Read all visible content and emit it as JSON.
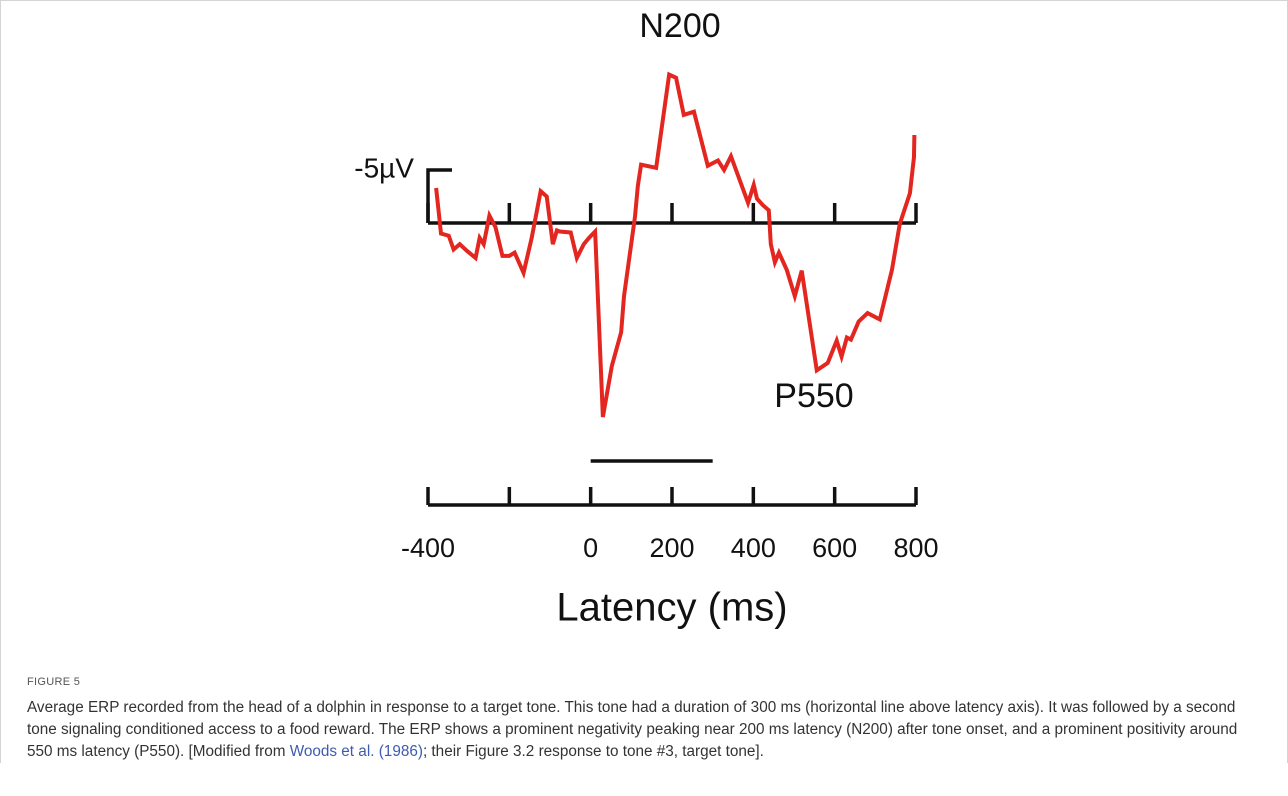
{
  "chart_data": {
    "type": "line",
    "x": [
      -380,
      -368,
      -349,
      -337,
      -322,
      -305,
      -283,
      -273,
      -263,
      -249,
      -234,
      -217,
      -200,
      -187,
      -165,
      -145,
      -123,
      -108,
      -93,
      -83,
      -76,
      -49,
      -34,
      -17,
      -4,
      11,
      30,
      52,
      75,
      82,
      109,
      116,
      124,
      161,
      193,
      210,
      229,
      254,
      288,
      313,
      328,
      345,
      387,
      401,
      409,
      423,
      438,
      443,
      453,
      463,
      482,
      502,
      519,
      556,
      583,
      605,
      617,
      630,
      640,
      659,
      681,
      711,
      741,
      760,
      785,
      795,
      796
    ],
    "values": [
      -3.3,
      1.0,
      1.2,
      2.5,
      2.0,
      2.6,
      3.3,
      1.4,
      2.0,
      -0.7,
      0.4,
      3.1,
      3.1,
      2.8,
      4.7,
      1.4,
      -3.0,
      -2.5,
      2.0,
      0.7,
      0.8,
      0.9,
      3.3,
      2.0,
      1.4,
      0.8,
      18.3,
      13.5,
      10.3,
      6.9,
      -0.6,
      -3.5,
      -5.5,
      -5.2,
      -14.0,
      -13.7,
      -10.2,
      -10.5,
      -5.4,
      -5.9,
      -5.0,
      -6.3,
      -1.9,
      -3.6,
      -2.3,
      -1.7,
      -1.2,
      2.0,
      3.7,
      2.8,
      4.4,
      6.9,
      4.5,
      13.9,
      13.2,
      11.1,
      12.6,
      10.8,
      11.0,
      9.3,
      8.5,
      9.1,
      4.4,
      0.1,
      -2.8,
      -6.2,
      -8.3
    ],
    "color": "#e3261f",
    "xlim": [
      -400,
      800
    ],
    "xticks": [
      -400,
      {
        "value": -200,
        "label": null
      },
      0,
      200,
      400,
      600,
      800
    ],
    "xlabel": "Latency (ms)",
    "ylim": [
      21,
      -16
    ],
    "yticks": [
      {
        "value": -5,
        "label": "-5µV"
      }
    ],
    "stimulus": [
      0,
      300
    ],
    "annotations": [
      {
        "text": "N200"
      },
      {
        "text": "P550"
      }
    ]
  },
  "caption": {
    "label": "FIGURE 5",
    "text_before": "Average ERP recorded from the head of a dolphin in response to a target tone. This tone had a duration of 300 ms (horizontal line above latency axis). It was followed by a second tone signaling conditioned access to a food reward. The ERP shows a prominent negativity peaking near 200 ms latency (N200) after tone onset, and a prominent positivity around 550 ms latency (P550). [Modified from ",
    "link": "Woods et al. (1986)",
    "text_after": "; their Figure 3.2 response to tone #3, target tone]."
  }
}
